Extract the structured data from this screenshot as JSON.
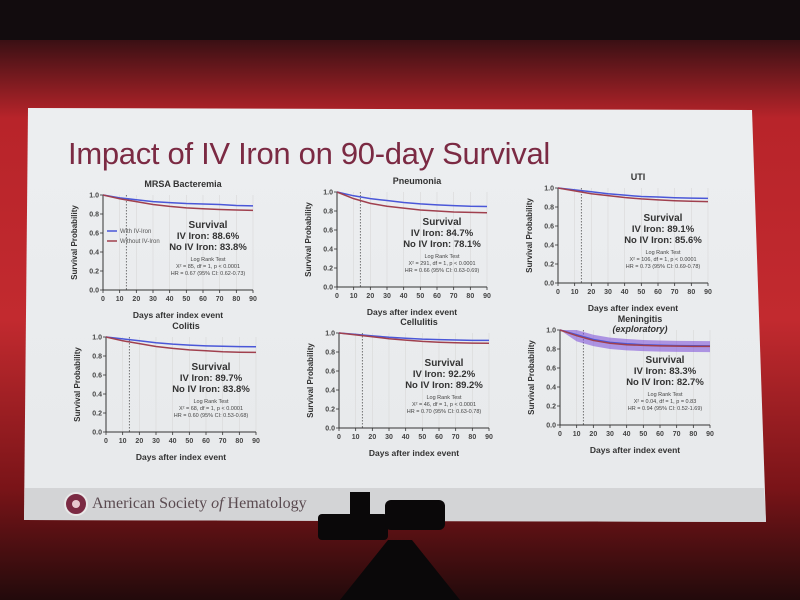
{
  "slide": {
    "title": "Impact of IV Iron on 90-day Survival",
    "footer_org_pre": "American Society ",
    "footer_org_of": "of",
    "footer_org_post": " Hematology"
  },
  "colors": {
    "iv_iron": "#4a57d8",
    "no_iv_iron": "#a0404e",
    "title": "#7b2a43"
  },
  "chart_data": [
    {
      "type": "line",
      "title": "MRSA Bacteremia",
      "subtitle": "",
      "xlabel": "Days after index event",
      "ylabel": "Survival Probability",
      "xlim": [
        0,
        90
      ],
      "ylim": [
        0,
        1
      ],
      "xticks": [
        "0",
        "10",
        "20",
        "30",
        "40",
        "50",
        "60",
        "70",
        "80",
        "90"
      ],
      "yticks": [
        "0.0",
        "0.2",
        "0.4",
        "0.6",
        "0.8",
        "1.0"
      ],
      "reference_line_day": 14,
      "legend": [
        "With IV-Iron",
        "Without IV-Iron"
      ],
      "x": [
        0,
        10,
        20,
        30,
        40,
        50,
        60,
        70,
        80,
        90
      ],
      "series": [
        {
          "name": "With IV-Iron",
          "values": [
            1,
            0.97,
            0.95,
            0.93,
            0.92,
            0.91,
            0.905,
            0.9,
            0.89,
            0.886
          ]
        },
        {
          "name": "Without IV-Iron",
          "values": [
            1,
            0.96,
            0.93,
            0.9,
            0.88,
            0.865,
            0.855,
            0.848,
            0.842,
            0.838
          ]
        }
      ],
      "survival_heading": "Survival",
      "iv_text": "IV Iron: 88.6%",
      "no_iv_text": "No IV Iron: 83.8%",
      "test_heading": "Log Rank Test",
      "test_stat": "X² = 85, df = 1, p < 0.0001",
      "hr": "HR = 0.67 (95% CI: 0.62-0.73)",
      "confidence_band": false
    },
    {
      "type": "line",
      "title": "Pneumonia",
      "subtitle": "",
      "xlabel": "Days after index event",
      "ylabel": "Survival Probability",
      "xlim": [
        0,
        90
      ],
      "ylim": [
        0,
        1
      ],
      "xticks": [
        "0",
        "10",
        "20",
        "30",
        "40",
        "50",
        "60",
        "70",
        "80",
        "90"
      ],
      "yticks": [
        "0.0",
        "0.2",
        "0.4",
        "0.6",
        "0.8",
        "1.0"
      ],
      "reference_line_day": 14,
      "legend": [],
      "x": [
        0,
        10,
        20,
        30,
        40,
        50,
        60,
        70,
        80,
        90
      ],
      "series": [
        {
          "values": [
            1,
            0.96,
            0.93,
            0.91,
            0.89,
            0.875,
            0.865,
            0.857,
            0.85,
            0.847
          ]
        },
        {
          "values": [
            1,
            0.93,
            0.88,
            0.85,
            0.83,
            0.81,
            0.8,
            0.79,
            0.785,
            0.781
          ]
        }
      ],
      "survival_heading": "Survival",
      "iv_text": "IV Iron: 84.7%",
      "no_iv_text": "No IV Iron: 78.1%",
      "test_heading": "Log Rank Test",
      "test_stat": "X² = 291, df = 1, p < 0.0001",
      "hr": "HR = 0.66 (95% CI: 0.63-0.69)",
      "confidence_band": false
    },
    {
      "type": "line",
      "title": "UTI",
      "subtitle": "",
      "xlabel": "Days after index event",
      "ylabel": "Survival Probability",
      "xlim": [
        0,
        90
      ],
      "ylim": [
        0,
        1
      ],
      "xticks": [
        "0",
        "10",
        "20",
        "30",
        "40",
        "50",
        "60",
        "70",
        "80",
        "90"
      ],
      "yticks": [
        "0.0",
        "0.2",
        "0.4",
        "0.6",
        "0.8",
        "1.0"
      ],
      "reference_line_day": 14,
      "legend": [],
      "x": [
        0,
        10,
        20,
        30,
        40,
        50,
        60,
        70,
        80,
        90
      ],
      "series": [
        {
          "values": [
            1,
            0.98,
            0.96,
            0.94,
            0.925,
            0.91,
            0.905,
            0.898,
            0.894,
            0.891
          ]
        },
        {
          "values": [
            1,
            0.97,
            0.94,
            0.92,
            0.9,
            0.885,
            0.875,
            0.866,
            0.86,
            0.856
          ]
        }
      ],
      "survival_heading": "Survival",
      "iv_text": "IV Iron: 89.1%",
      "no_iv_text": "No IV Iron: 85.6%",
      "test_heading": "Log Rank Test",
      "test_stat": "X² = 106, df = 1, p < 0.0001",
      "hr": "HR = 0.73 (95% CI: 0.69-0.78)",
      "confidence_band": false
    },
    {
      "type": "line",
      "title": "Colitis",
      "subtitle": "",
      "xlabel": "Days after index event",
      "ylabel": "Survival Probability",
      "xlim": [
        0,
        90
      ],
      "ylim": [
        0,
        1
      ],
      "xticks": [
        "0",
        "10",
        "20",
        "30",
        "40",
        "50",
        "60",
        "70",
        "80",
        "90"
      ],
      "yticks": [
        "0.0",
        "0.2",
        "0.4",
        "0.6",
        "0.8",
        "1.0"
      ],
      "reference_line_day": 14,
      "legend": [],
      "x": [
        0,
        10,
        20,
        30,
        40,
        50,
        60,
        70,
        80,
        90
      ],
      "series": [
        {
          "values": [
            1,
            0.98,
            0.96,
            0.94,
            0.925,
            0.915,
            0.907,
            0.902,
            0.899,
            0.897
          ]
        },
        {
          "values": [
            1,
            0.96,
            0.93,
            0.9,
            0.88,
            0.865,
            0.855,
            0.845,
            0.84,
            0.838
          ]
        }
      ],
      "survival_heading": "Survival",
      "iv_text": "IV Iron: 89.7%",
      "no_iv_text": "No IV Iron: 83.8%",
      "test_heading": "Log Rank Test",
      "test_stat": "X² = 68, df = 1, p < 0.0001",
      "hr": "HR = 0.60 (95% CI: 0.53-0.68)",
      "confidence_band": false
    },
    {
      "type": "line",
      "title": "Cellulitis",
      "subtitle": "",
      "xlabel": "Days after index event",
      "ylabel": "Survival Probability",
      "xlim": [
        0,
        90
      ],
      "ylim": [
        0,
        1
      ],
      "xticks": [
        "0",
        "10",
        "20",
        "30",
        "40",
        "50",
        "60",
        "70",
        "80",
        "90"
      ],
      "yticks": [
        "0.0",
        "0.2",
        "0.4",
        "0.6",
        "0.8",
        "1.0"
      ],
      "reference_line_day": 14,
      "legend": [],
      "x": [
        0,
        10,
        20,
        30,
        40,
        50,
        60,
        70,
        80,
        90
      ],
      "series": [
        {
          "values": [
            1,
            0.985,
            0.97,
            0.955,
            0.945,
            0.935,
            0.93,
            0.926,
            0.923,
            0.922
          ]
        },
        {
          "values": [
            1,
            0.98,
            0.96,
            0.94,
            0.925,
            0.912,
            0.903,
            0.897,
            0.894,
            0.892
          ]
        }
      ],
      "survival_heading": "Survival",
      "iv_text": "IV Iron: 92.2%",
      "no_iv_text": "No IV Iron: 89.2%",
      "test_heading": "Log Rank Test",
      "test_stat": "X² = 46, df = 1, p < 0.0001",
      "hr": "HR = 0.70 (95% CI: 0.63-0.78)",
      "confidence_band": false
    },
    {
      "type": "line",
      "title": "Meningitis",
      "subtitle": "(exploratory)",
      "xlabel": "Days after index event",
      "ylabel": "Survival Probability",
      "xlim": [
        0,
        90
      ],
      "ylim": [
        0,
        1
      ],
      "xticks": [
        "0",
        "10",
        "20",
        "30",
        "40",
        "50",
        "60",
        "70",
        "80",
        "90"
      ],
      "yticks": [
        "0.0",
        "0.2",
        "0.4",
        "0.6",
        "0.8",
        "1.0"
      ],
      "reference_line_day": 14,
      "legend": [],
      "x": [
        0,
        10,
        20,
        30,
        40,
        50,
        60,
        70,
        80,
        90
      ],
      "series": [
        {
          "values": [
            1,
            0.95,
            0.9,
            0.87,
            0.855,
            0.845,
            0.84,
            0.836,
            0.834,
            0.833
          ]
        },
        {
          "values": [
            1,
            0.94,
            0.89,
            0.86,
            0.845,
            0.838,
            0.833,
            0.83,
            0.828,
            0.827
          ]
        }
      ],
      "survival_heading": "Survival",
      "iv_text": "IV Iron: 83.3%",
      "no_iv_text": "No IV Iron: 82.7%",
      "test_heading": "Log Rank Test",
      "test_stat": "X² = 0.04, df = 1, p = 0.83",
      "hr": "HR = 0.94 (95% CI: 0.52-1.69)",
      "confidence_band": true
    }
  ]
}
